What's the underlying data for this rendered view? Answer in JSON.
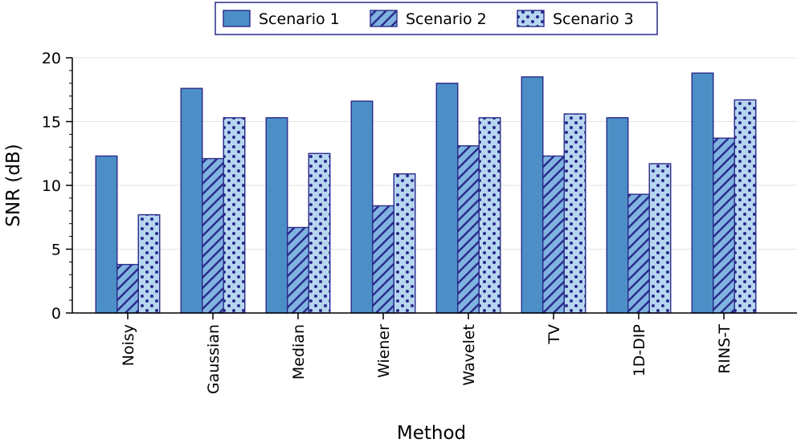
{
  "chart_data": {
    "type": "bar",
    "title": "",
    "xlabel": "Method",
    "ylabel": "SNR (dB)",
    "ylim": [
      0,
      20
    ],
    "yticks": [
      0,
      5,
      10,
      15,
      20
    ],
    "grid": true,
    "legend_position": "top-center",
    "categories": [
      "Noisy",
      "Gaussian",
      "Median",
      "Wiener",
      "Wavelet",
      "TV",
      "1D-DIP",
      "RINS-T"
    ],
    "series": [
      {
        "name": "Scenario 1",
        "pattern": "solid",
        "fill": "#4b8fc6",
        "stroke": "#2a2a8a",
        "values": [
          12.3,
          17.6,
          15.3,
          16.6,
          18.0,
          18.5,
          15.3,
          18.8
        ]
      },
      {
        "name": "Scenario 2",
        "pattern": "hatch",
        "fill": "#7fb3e0",
        "stroke": "#2a2a8a",
        "values": [
          3.8,
          12.1,
          6.7,
          8.4,
          13.1,
          12.3,
          9.3,
          13.7
        ]
      },
      {
        "name": "Scenario 3",
        "pattern": "dots",
        "fill": "#b6d6f0",
        "stroke": "#2a2a8a",
        "values": [
          7.7,
          15.3,
          12.5,
          10.9,
          15.3,
          15.6,
          11.7,
          16.7
        ]
      }
    ]
  }
}
